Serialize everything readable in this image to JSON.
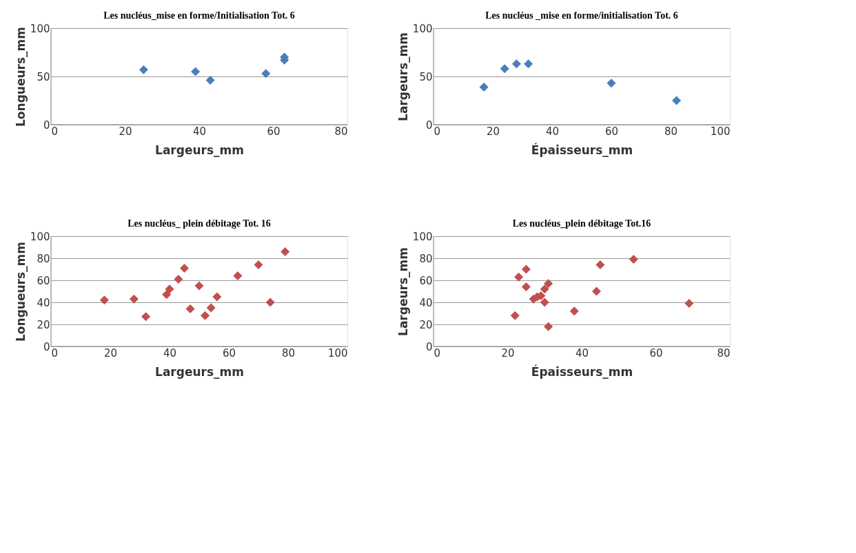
{
  "chart_data": [
    {
      "type": "scatter",
      "title": "Les nucléus_mise en forme/Initialisation Tot. 6",
      "xlabel": "Largeurs_mm",
      "ylabel": "Longueurs_mm",
      "marker": "diamond",
      "grid": "y",
      "xlim": [
        0,
        80
      ],
      "xticks": [
        0,
        20,
        40,
        60,
        80
      ],
      "ylim": [
        0,
        100
      ],
      "yticks": [
        0,
        50,
        100
      ],
      "series": [
        {
          "color": "#4a7ebb",
          "x": [
            25,
            39,
            43,
            58,
            63,
            63
          ],
          "values": [
            57,
            55,
            46,
            53,
            67,
            70
          ]
        }
      ]
    },
    {
      "type": "scatter",
      "title": "Les nucléus _mise en forme/initialisation Tot. 6",
      "xlabel": "Épaisseurs_mm",
      "ylabel": "Largeurs_mm",
      "marker": "diamond",
      "grid": "y",
      "xlim": [
        0,
        100
      ],
      "xticks": [
        0,
        20,
        40,
        60,
        80,
        100
      ],
      "ylim": [
        0,
        100
      ],
      "yticks": [
        0,
        50,
        100
      ],
      "series": [
        {
          "color": "#4a7ebb",
          "x": [
            17,
            24,
            28,
            32,
            60,
            82
          ],
          "values": [
            39,
            58,
            63,
            63,
            43,
            25
          ]
        }
      ]
    },
    {
      "type": "scatter",
      "title": "Les nucléus_ plein débitage Tot. 16",
      "xlabel": "Largeurs_mm",
      "ylabel": "Longueurs_mm",
      "marker": "diamond",
      "grid": "y",
      "xlim": [
        0,
        100
      ],
      "xticks": [
        0,
        20,
        40,
        60,
        80,
        100
      ],
      "ylim": [
        0,
        100
      ],
      "yticks": [
        0,
        20,
        40,
        60,
        80,
        100
      ],
      "series": [
        {
          "color": "#c0504d",
          "x": [
            18,
            28,
            32,
            39,
            40,
            43,
            45,
            47,
            50,
            52,
            54,
            56,
            63,
            70,
            74,
            79
          ],
          "values": [
            42,
            43,
            27,
            47,
            52,
            61,
            71,
            34,
            55,
            28,
            35,
            45,
            64,
            74,
            40,
            86
          ]
        }
      ]
    },
    {
      "type": "scatter",
      "title": "Les nucléus_plein débitage Tot.16",
      "xlabel": "Épaisseurs_mm",
      "ylabel": "Largeurs_mm",
      "marker": "diamond",
      "grid": "y",
      "xlim": [
        0,
        80
      ],
      "xticks": [
        0,
        20,
        40,
        60,
        80
      ],
      "ylim": [
        0,
        100
      ],
      "yticks": [
        0,
        20,
        40,
        60,
        80,
        100
      ],
      "series": [
        {
          "color": "#c0504d",
          "x": [
            22,
            23,
            25,
            25,
            27,
            28,
            29,
            30,
            30,
            31,
            31,
            38,
            44,
            45,
            54,
            69
          ],
          "values": [
            28,
            63,
            70,
            54,
            43,
            45,
            46,
            52,
            40,
            57,
            18,
            32,
            50,
            74,
            79,
            39
          ]
        }
      ]
    }
  ]
}
